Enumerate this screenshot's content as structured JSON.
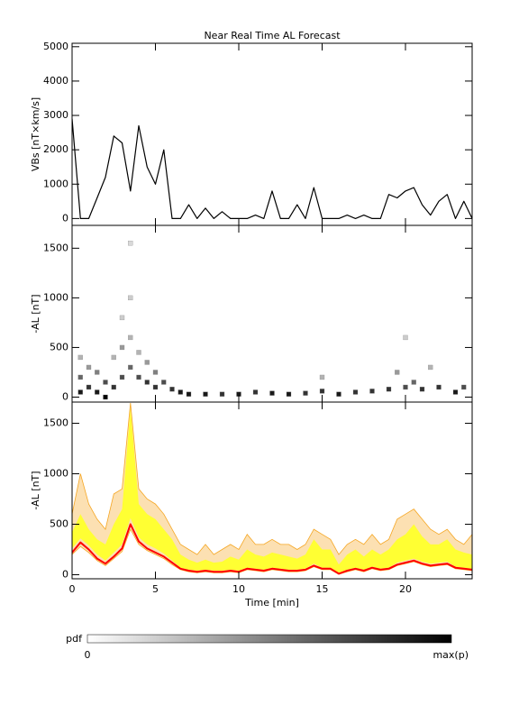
{
  "chart_data": [
    {
      "type": "line",
      "title": "Near Real Time AL Forecast",
      "ylabel": "VBs [nT×km/s]",
      "x": [
        0,
        0.5,
        1,
        1.5,
        2,
        2.5,
        3,
        3.5,
        4,
        4.5,
        5,
        5.5,
        6,
        6.5,
        7,
        7.5,
        8,
        8.5,
        9,
        9.5,
        10,
        10.5,
        11,
        11.5,
        12,
        12.5,
        13,
        13.5,
        14,
        14.5,
        15,
        15.5,
        16,
        16.5,
        17,
        17.5,
        18,
        18.5,
        19,
        19.5,
        20,
        20.5,
        21,
        21.5,
        22,
        22.5,
        23,
        23.5,
        24
      ],
      "series": [
        {
          "color": "#000000",
          "values": [
            2900,
            0,
            0,
            600,
            1200,
            2400,
            2200,
            800,
            2700,
            1500,
            1000,
            2000,
            0,
            0,
            400,
            0,
            300,
            0,
            200,
            0,
            0,
            0,
            100,
            0,
            800,
            0,
            0,
            400,
            0,
            900,
            0,
            0,
            0,
            100,
            0,
            100,
            0,
            0,
            700,
            600,
            800,
            900,
            400,
            100,
            500,
            700,
            0,
            500,
            0
          ]
        }
      ],
      "ylim": [
        -200,
        5100
      ],
      "yticks": [
        0,
        1000,
        2000,
        3000,
        4000,
        5000
      ]
    },
    {
      "type": "heatmap",
      "ylabel": "-AL [nT]",
      "x": [
        0.5,
        0.5,
        0.5,
        1,
        1,
        1.5,
        1.5,
        2,
        2,
        2.5,
        2.5,
        3,
        3,
        3,
        3.5,
        3.5,
        3.5,
        3.5,
        4,
        4,
        4.5,
        4.5,
        5,
        5,
        5.5,
        6,
        6.5,
        7,
        8,
        9,
        10,
        11,
        12,
        13,
        14,
        15,
        15,
        16,
        17,
        18,
        19,
        19.5,
        20,
        20,
        20.5,
        21,
        21.5,
        22,
        23,
        23.5
      ],
      "y": [
        50,
        200,
        400,
        100,
        300,
        50,
        250,
        0,
        150,
        100,
        400,
        200,
        500,
        800,
        300,
        600,
        1000,
        1550,
        200,
        450,
        150,
        350,
        100,
        250,
        150,
        80,
        50,
        30,
        30,
        30,
        30,
        50,
        40,
        30,
        40,
        60,
        200,
        30,
        50,
        60,
        80,
        250,
        100,
        600,
        150,
        80,
        300,
        100,
        50,
        100
      ],
      "values": [
        0.9,
        0.6,
        0.3,
        0.8,
        0.4,
        0.9,
        0.5,
        1,
        0.7,
        0.8,
        0.3,
        0.7,
        0.4,
        0.2,
        0.6,
        0.3,
        0.2,
        0.15,
        0.7,
        0.3,
        0.8,
        0.4,
        0.8,
        0.5,
        0.7,
        0.8,
        0.9,
        0.9,
        0.9,
        0.8,
        0.9,
        0.8,
        0.9,
        0.9,
        0.8,
        0.8,
        0.3,
        0.9,
        0.8,
        0.8,
        0.8,
        0.4,
        0.7,
        0.2,
        0.6,
        0.8,
        0.3,
        0.8,
        0.9,
        0.7
      ],
      "ylim": [
        -50,
        1730
      ],
      "yticks": [
        0,
        500,
        1000,
        1500
      ]
    },
    {
      "type": "line",
      "ylabel": "-AL [nT]",
      "xlabel": "Time [min]",
      "x": [
        0,
        0.5,
        1,
        1.5,
        2,
        2.5,
        3,
        3.5,
        4,
        4.5,
        5,
        5.5,
        6,
        6.5,
        7,
        7.5,
        8,
        8.5,
        9,
        9.5,
        10,
        10.5,
        11,
        11.5,
        12,
        12.5,
        13,
        13.5,
        14,
        14.5,
        15,
        15.5,
        16,
        16.5,
        17,
        17.5,
        18,
        18.5,
        19,
        19.5,
        20,
        20.5,
        21,
        21.5,
        22,
        22.5,
        23,
        23.5,
        24
      ],
      "bands": [
        {
          "color": "#f5a623",
          "upper": [
            600,
            1000,
            700,
            550,
            450,
            800,
            850,
            1700,
            850,
            750,
            700,
            600,
            450,
            300,
            250,
            200,
            300,
            200,
            250,
            300,
            250,
            400,
            300,
            300,
            350,
            300,
            300,
            250,
            300,
            450,
            400,
            350,
            200,
            300,
            350,
            300,
            400,
            300,
            350,
            550,
            600,
            650,
            550,
            450,
            400,
            450,
            350,
            300,
            400
          ],
          "lower": [
            200,
            280,
            220,
            140,
            90,
            160,
            230,
            450,
            300,
            240,
            200,
            160,
            100,
            50,
            30,
            20,
            30,
            20,
            20,
            30,
            20,
            50,
            40,
            30,
            50,
            40,
            30,
            30,
            40,
            80,
            50,
            50,
            5,
            30,
            50,
            30,
            60,
            40,
            50,
            90,
            110,
            130,
            100,
            80,
            90,
            100,
            60,
            50,
            40
          ]
        },
        {
          "color": "#ffff33",
          "upper": [
            420,
            600,
            450,
            350,
            300,
            500,
            650,
            1650,
            700,
            600,
            550,
            450,
            350,
            200,
            150,
            120,
            150,
            120,
            130,
            180,
            150,
            250,
            200,
            180,
            220,
            200,
            180,
            160,
            200,
            350,
            250,
            250,
            100,
            200,
            250,
            180,
            250,
            200,
            250,
            350,
            400,
            500,
            380,
            300,
            300,
            350,
            250,
            220,
            200
          ],
          "lower": [
            260,
            360,
            290,
            200,
            140,
            220,
            300,
            560,
            370,
            300,
            260,
            210,
            140,
            70,
            50,
            40,
            50,
            40,
            40,
            50,
            40,
            70,
            60,
            50,
            70,
            60,
            50,
            50,
            60,
            110,
            70,
            70,
            20,
            50,
            70,
            50,
            80,
            60,
            70,
            120,
            140,
            160,
            130,
            110,
            120,
            130,
            80,
            70,
            60
          ]
        }
      ],
      "series": [
        {
          "color": "#ff0000",
          "values": [
            220,
            320,
            250,
            160,
            110,
            180,
            260,
            500,
            330,
            260,
            220,
            180,
            120,
            60,
            40,
            30,
            40,
            30,
            30,
            40,
            30,
            60,
            50,
            40,
            60,
            50,
            40,
            40,
            50,
            90,
            60,
            60,
            10,
            40,
            60,
            40,
            70,
            50,
            60,
            100,
            120,
            140,
            110,
            90,
            100,
            110,
            70,
            60,
            50
          ]
        }
      ],
      "xlim": [
        0,
        24
      ],
      "xticks": [
        0,
        5,
        10,
        15,
        20
      ],
      "ylim": [
        -40,
        1710
      ],
      "yticks": [
        0,
        500,
        1000,
        1500
      ]
    }
  ],
  "colorbar": {
    "label": "pdf",
    "min_label": "0",
    "max_label": "max(p)"
  }
}
